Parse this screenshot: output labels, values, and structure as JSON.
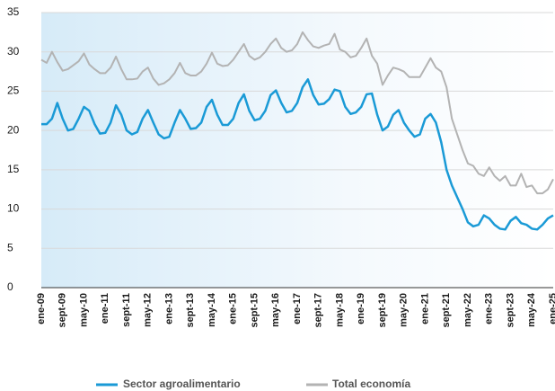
{
  "chart_data": {
    "type": "line",
    "categories": [
      "ene-09",
      null,
      null,
      null,
      "sept-09",
      null,
      null,
      null,
      "may-10",
      null,
      null,
      null,
      "ene-11",
      null,
      null,
      null,
      "sept-11",
      null,
      null,
      null,
      "may-12",
      null,
      null,
      null,
      "ene-13",
      null,
      null,
      null,
      "sept-13",
      null,
      null,
      null,
      "may-14",
      null,
      null,
      null,
      "ene-15",
      null,
      null,
      null,
      "sept-15",
      null,
      null,
      null,
      "may-16",
      null,
      null,
      null,
      "ene-17",
      null,
      null,
      null,
      "sept-17",
      null,
      null,
      null,
      "may-18",
      null,
      null,
      null,
      "ene-19",
      null,
      null,
      null,
      "sept-19",
      null,
      null,
      null,
      "may-20",
      null,
      null,
      null,
      "ene-21",
      null,
      null,
      null,
      "sept-21",
      null,
      null,
      null,
      "may-22",
      null,
      null,
      null,
      "ene-23",
      null,
      null,
      null,
      "sept-23",
      null,
      null,
      null,
      "may-24",
      null,
      null,
      null,
      "ene-25"
    ],
    "series": [
      {
        "name": "Sector agroalimentario",
        "color": "#1a9ad6",
        "values": [
          20.8,
          20.8,
          21.5,
          23.5,
          21.5,
          20.0,
          20.2,
          21.5,
          23.0,
          22.5,
          20.8,
          19.6,
          19.7,
          21.0,
          23.2,
          22.0,
          20.0,
          19.5,
          19.8,
          21.5,
          22.6,
          21.0,
          19.5,
          19.0,
          19.2,
          21.0,
          22.6,
          21.5,
          20.2,
          20.3,
          21.0,
          23.0,
          23.9,
          22.0,
          20.7,
          20.7,
          21.5,
          23.5,
          24.6,
          22.5,
          21.3,
          21.5,
          22.5,
          24.5,
          25.1,
          23.5,
          22.3,
          22.5,
          23.5,
          25.5,
          26.5,
          24.5,
          23.3,
          23.4,
          24.0,
          25.2,
          25.0,
          23.0,
          22.1,
          22.3,
          23.0,
          24.6,
          24.7,
          22.0,
          20.0,
          20.5,
          22.0,
          22.6,
          21.0,
          20.0,
          19.2,
          19.5,
          21.5,
          22.1,
          21.0,
          18.5,
          15.0,
          13.0,
          11.5,
          10.0,
          8.3,
          7.8,
          8.0,
          9.2,
          8.8,
          8.0,
          7.5,
          7.4,
          8.5,
          9.0,
          8.2,
          8.0,
          7.5,
          7.4,
          8.0,
          8.8,
          9.2
        ]
      },
      {
        "name": "Total economía",
        "color": "#b3b3b3",
        "values": [
          29.0,
          28.6,
          30.0,
          28.7,
          27.6,
          27.8,
          28.3,
          28.8,
          29.8,
          28.4,
          27.8,
          27.3,
          27.3,
          28.0,
          29.4,
          27.8,
          26.5,
          26.5,
          26.6,
          27.5,
          28.0,
          26.6,
          25.8,
          26.0,
          26.5,
          27.3,
          28.6,
          27.3,
          27.0,
          27.0,
          27.5,
          28.5,
          29.9,
          28.5,
          28.2,
          28.3,
          29.0,
          30.0,
          31.0,
          29.5,
          29.0,
          29.3,
          30.0,
          31.0,
          31.7,
          30.5,
          30.0,
          30.2,
          31.0,
          32.5,
          31.5,
          30.7,
          30.5,
          30.8,
          31.0,
          32.3,
          30.3,
          30.0,
          29.3,
          29.5,
          30.5,
          31.7,
          29.5,
          28.5,
          25.8,
          27.0,
          28.0,
          27.8,
          27.5,
          26.8,
          26.8,
          26.8,
          28.0,
          29.2,
          28.0,
          27.5,
          25.5,
          21.5,
          19.5,
          17.5,
          15.8,
          15.5,
          14.5,
          14.2,
          15.3,
          14.2,
          13.6,
          14.2,
          13.0,
          13.0,
          14.5,
          12.8,
          13.0,
          12.0,
          12.0,
          12.5,
          13.8
        ]
      }
    ],
    "ylim": [
      0,
      35
    ],
    "yticks": [
      0,
      5,
      10,
      15,
      20,
      25,
      30,
      35
    ],
    "grid": true,
    "legend": "bottom"
  }
}
